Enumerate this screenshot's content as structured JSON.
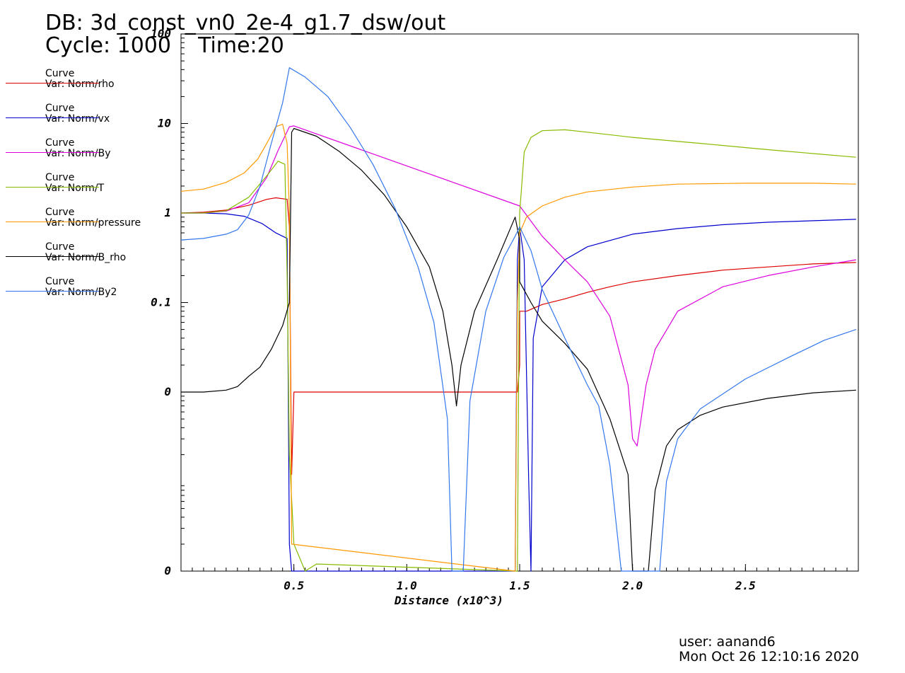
{
  "header": {
    "db": "DB: 3d_const_vn0_2e-4_g1.7_dsw/out",
    "cycle_time": "Cycle: 1000    Time:20"
  },
  "legend": [
    {
      "line1": "Curve",
      "line2": "Var: Norm/rho",
      "color": "#dd0000"
    },
    {
      "line1": "Curve",
      "line2": "Var: Norm/vx",
      "color": "#0000cc"
    },
    {
      "line1": "Curve",
      "line2": "Var: Norm/By",
      "color": "#dd00dd"
    },
    {
      "line1": "Curve",
      "line2": "Var: Norm/T",
      "color": "#88bb00"
    },
    {
      "line1": "Curve",
      "line2": "Var: Norm/pressure",
      "color": "#ff9900"
    },
    {
      "line1": "Curve",
      "line2": "Var: Norm/B_rho",
      "color": "#000000"
    },
    {
      "line1": "Curve",
      "line2": "Var: Norm/By2",
      "color": "#3377ee"
    }
  ],
  "footer": {
    "user": "user: aanand6",
    "date": "Mon Oct 26 12:10:16 2020"
  },
  "chart_data": {
    "type": "line",
    "title": "",
    "xlabel": "Distance (x10^3)",
    "ylabel": "",
    "xlim": [
      0,
      3.0
    ],
    "ylim": [
      0.0001,
      100
    ],
    "y_scale": "log",
    "grid": false,
    "legend_position": "left",
    "x_ticks": [
      {
        "v": 0.5,
        "label": "0.5"
      },
      {
        "v": 1.0,
        "label": "1.0"
      },
      {
        "v": 1.5,
        "label": "1.5"
      },
      {
        "v": 2.0,
        "label": "2.0"
      },
      {
        "v": 2.5,
        "label": "2.5"
      }
    ],
    "y_ticks": [
      {
        "v": 100,
        "label": "100"
      },
      {
        "v": 10,
        "label": "10"
      },
      {
        "v": 1,
        "label": "1"
      },
      {
        "v": 0.1,
        "label": "0.1"
      },
      {
        "v": 0.01,
        "label": "0"
      },
      {
        "v": 0.0001,
        "label": "0"
      }
    ],
    "series": [
      {
        "name": "Var: Norm/rho",
        "color": "#dd0000",
        "points": [
          [
            0,
            1.0
          ],
          [
            0.1,
            1.02
          ],
          [
            0.2,
            1.08
          ],
          [
            0.3,
            1.22
          ],
          [
            0.38,
            1.42
          ],
          [
            0.42,
            1.48
          ],
          [
            0.47,
            1.42
          ],
          [
            0.48,
            0.7
          ],
          [
            0.49,
            0.0012
          ],
          [
            0.5,
            0.01
          ],
          [
            0.8,
            0.01
          ],
          [
            1.1,
            0.01
          ],
          [
            1.3,
            0.01
          ],
          [
            1.49,
            0.01
          ],
          [
            1.5,
            0.02
          ],
          [
            1.5,
            0.08
          ],
          [
            1.53,
            0.08
          ],
          [
            1.6,
            0.095
          ],
          [
            1.7,
            0.11
          ],
          [
            1.8,
            0.13
          ],
          [
            1.9,
            0.15
          ],
          [
            2.0,
            0.17
          ],
          [
            2.2,
            0.2
          ],
          [
            2.4,
            0.23
          ],
          [
            2.6,
            0.25
          ],
          [
            2.8,
            0.27
          ],
          [
            2.99,
            0.28
          ]
        ]
      },
      {
        "name": "Var: Norm/vx",
        "color": "#0000cc",
        "points": [
          [
            0,
            1.0
          ],
          [
            0.1,
            1.0
          ],
          [
            0.2,
            0.98
          ],
          [
            0.28,
            0.92
          ],
          [
            0.36,
            0.76
          ],
          [
            0.42,
            0.6
          ],
          [
            0.47,
            0.52
          ],
          [
            0.48,
            0.0002
          ],
          [
            0.49,
            0.0001
          ],
          [
            1.48,
            0.0001
          ],
          [
            1.49,
            0.3
          ],
          [
            1.5,
            0.7
          ],
          [
            1.52,
            0.3
          ],
          [
            1.54,
            0.001
          ],
          [
            1.55,
            0.0001
          ],
          [
            1.56,
            0.04
          ],
          [
            1.6,
            0.15
          ],
          [
            1.7,
            0.3
          ],
          [
            1.8,
            0.42
          ],
          [
            2.0,
            0.58
          ],
          [
            2.2,
            0.67
          ],
          [
            2.4,
            0.74
          ],
          [
            2.6,
            0.79
          ],
          [
            2.8,
            0.82
          ],
          [
            2.99,
            0.85
          ]
        ]
      },
      {
        "name": "Var: Norm/By",
        "color": "#dd00dd",
        "points": [
          [
            0,
            1.0
          ],
          [
            0.1,
            1.0
          ],
          [
            0.2,
            1.05
          ],
          [
            0.3,
            1.3
          ],
          [
            0.38,
            2.5
          ],
          [
            0.43,
            5.0
          ],
          [
            0.48,
            9.2
          ],
          [
            0.5,
            9.4
          ],
          [
            1.5,
            1.2
          ],
          [
            1.6,
            0.55
          ],
          [
            1.7,
            0.3
          ],
          [
            1.8,
            0.17
          ],
          [
            1.9,
            0.07
          ],
          [
            1.98,
            0.012
          ],
          [
            2.0,
            0.003
          ],
          [
            2.02,
            0.0025
          ],
          [
            2.06,
            0.012
          ],
          [
            2.1,
            0.03
          ],
          [
            2.2,
            0.08
          ],
          [
            2.4,
            0.15
          ],
          [
            2.6,
            0.2
          ],
          [
            2.8,
            0.25
          ],
          [
            2.99,
            0.3
          ]
        ]
      },
      {
        "name": "Var: Norm/T",
        "color": "#88bb00",
        "points": [
          [
            0,
            1.0
          ],
          [
            0.1,
            1.0
          ],
          [
            0.2,
            1.06
          ],
          [
            0.3,
            1.5
          ],
          [
            0.38,
            2.6
          ],
          [
            0.43,
            3.8
          ],
          [
            0.46,
            3.5
          ],
          [
            0.47,
            0.2
          ],
          [
            0.48,
            0.002
          ],
          [
            0.5,
            0.0002
          ],
          [
            0.55,
            0.0001
          ],
          [
            0.6,
            0.00012
          ],
          [
            1.49,
            0.0001
          ],
          [
            1.5,
            1.0
          ],
          [
            1.52,
            4.8
          ],
          [
            1.55,
            7.0
          ],
          [
            1.6,
            8.3
          ],
          [
            1.7,
            8.5
          ],
          [
            1.8,
            8.0
          ],
          [
            2.0,
            7.0
          ],
          [
            2.3,
            6.0
          ],
          [
            2.6,
            5.1
          ],
          [
            2.99,
            4.2
          ]
        ]
      },
      {
        "name": "Var: Norm/pressure",
        "color": "#ff9900",
        "points": [
          [
            0,
            1.75
          ],
          [
            0.1,
            1.85
          ],
          [
            0.2,
            2.2
          ],
          [
            0.28,
            2.8
          ],
          [
            0.34,
            4.0
          ],
          [
            0.38,
            6.0
          ],
          [
            0.42,
            9.2
          ],
          [
            0.45,
            9.8
          ],
          [
            0.47,
            6.0
          ],
          [
            0.48,
            1.0
          ],
          [
            0.49,
            0.0002
          ],
          [
            1.48,
            0.0001
          ],
          [
            1.49,
            0.1
          ],
          [
            1.5,
            0.6
          ],
          [
            1.53,
            0.9
          ],
          [
            1.6,
            1.2
          ],
          [
            1.7,
            1.5
          ],
          [
            1.8,
            1.72
          ],
          [
            2.0,
            1.95
          ],
          [
            2.2,
            2.1
          ],
          [
            2.5,
            2.15
          ],
          [
            2.8,
            2.15
          ],
          [
            2.99,
            2.1
          ]
        ]
      },
      {
        "name": "Var: Norm/B_rho",
        "color": "#000000",
        "points": [
          [
            0,
            0.01
          ],
          [
            0.1,
            0.01
          ],
          [
            0.2,
            0.0105
          ],
          [
            0.25,
            0.0115
          ],
          [
            0.3,
            0.015
          ],
          [
            0.35,
            0.019
          ],
          [
            0.4,
            0.03
          ],
          [
            0.45,
            0.055
          ],
          [
            0.48,
            0.1
          ],
          [
            0.49,
            8.0
          ],
          [
            0.5,
            8.8
          ],
          [
            0.6,
            7.2
          ],
          [
            0.7,
            4.9
          ],
          [
            0.8,
            3.0
          ],
          [
            0.9,
            1.6
          ],
          [
            1.0,
            0.7
          ],
          [
            1.1,
            0.25
          ],
          [
            1.16,
            0.08
          ],
          [
            1.2,
            0.02
          ],
          [
            1.22,
            0.007
          ],
          [
            1.24,
            0.02
          ],
          [
            1.3,
            0.08
          ],
          [
            1.4,
            0.3
          ],
          [
            1.48,
            0.9
          ],
          [
            1.5,
            0.5
          ],
          [
            1.5,
            0.17
          ],
          [
            1.55,
            0.1
          ],
          [
            1.6,
            0.062
          ],
          [
            1.7,
            0.035
          ],
          [
            1.8,
            0.018
          ],
          [
            1.9,
            0.005
          ],
          [
            1.98,
            0.0012
          ],
          [
            2.0,
            0.0001
          ],
          [
            2.07,
            0.0001
          ],
          [
            2.1,
            0.0008
          ],
          [
            2.15,
            0.0025
          ],
          [
            2.2,
            0.0038
          ],
          [
            2.3,
            0.0055
          ],
          [
            2.4,
            0.0068
          ],
          [
            2.6,
            0.0085
          ],
          [
            2.8,
            0.0098
          ],
          [
            2.99,
            0.0105
          ]
        ]
      },
      {
        "name": "Var: Norm/By2",
        "color": "#3377ee",
        "points": [
          [
            0,
            0.5
          ],
          [
            0.1,
            0.52
          ],
          [
            0.2,
            0.58
          ],
          [
            0.25,
            0.65
          ],
          [
            0.3,
            0.95
          ],
          [
            0.35,
            2.0
          ],
          [
            0.4,
            6.0
          ],
          [
            0.45,
            17.0
          ],
          [
            0.48,
            42.0
          ],
          [
            0.55,
            33.0
          ],
          [
            0.65,
            20.0
          ],
          [
            0.75,
            9.0
          ],
          [
            0.85,
            3.5
          ],
          [
            0.95,
            1.1
          ],
          [
            1.05,
            0.25
          ],
          [
            1.12,
            0.06
          ],
          [
            1.18,
            0.005
          ],
          [
            1.2,
            0.0001
          ],
          [
            1.25,
            0.0001
          ],
          [
            1.28,
            0.008
          ],
          [
            1.35,
            0.08
          ],
          [
            1.43,
            0.32
          ],
          [
            1.48,
            0.55
          ],
          [
            1.5,
            0.7
          ],
          [
            1.55,
            0.38
          ],
          [
            1.6,
            0.14
          ],
          [
            1.7,
            0.04
          ],
          [
            1.8,
            0.012
          ],
          [
            1.85,
            0.007
          ],
          [
            1.9,
            0.0015
          ],
          [
            1.95,
            0.0001
          ],
          [
            2.12,
            0.0001
          ],
          [
            2.15,
            0.001
          ],
          [
            2.2,
            0.003
          ],
          [
            2.3,
            0.0065
          ],
          [
            2.5,
            0.014
          ],
          [
            2.7,
            0.025
          ],
          [
            2.85,
            0.038
          ],
          [
            2.99,
            0.05
          ]
        ]
      }
    ]
  }
}
